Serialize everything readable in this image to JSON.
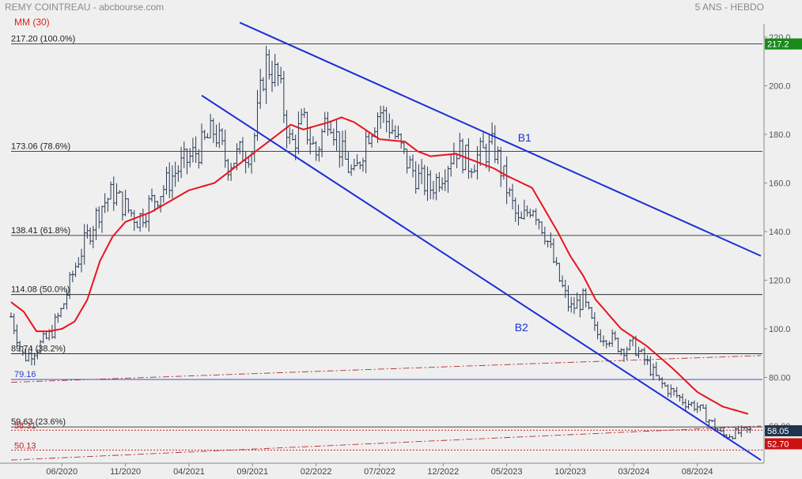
{
  "header": {
    "title": "REMY COINTREAU - abcbourse.com",
    "period": "5 ANS - HEBDO",
    "ma_label": "MM (30)"
  },
  "colors": {
    "background": "#efefef",
    "bars": "#2a3a55",
    "ma": "#e8141e",
    "channel": "#1b2fd6",
    "last_price_bg": "#1f3550",
    "high_bg": "#1a8a1a",
    "low_bg": "#cc1111"
  },
  "chart_data": {
    "type": "ohlc",
    "x_ticks": [
      "06/2020",
      "11/2020",
      "04/2021",
      "09/2021",
      "02/2022",
      "07/2022",
      "12/2022",
      "05/2023",
      "10/2023",
      "03/2024",
      "08/2024"
    ],
    "y_ticks": [
      "220.0",
      "200.0",
      "180.0",
      "160.0",
      "140.0",
      "120.0",
      "100.0",
      "80.00",
      "60.00"
    ],
    "ylim": [
      46,
      225
    ],
    "x_range": [
      "2020-02",
      "2025-01"
    ],
    "close_anchors": [
      [
        "2020-02",
        105
      ],
      [
        "2020-03",
        88
      ],
      [
        "2020-04",
        92
      ],
      [
        "2020-05",
        97
      ],
      [
        "2020-06",
        108
      ],
      [
        "2020-07",
        125
      ],
      [
        "2020-08",
        138
      ],
      [
        "2020-09",
        150
      ],
      [
        "2020-10",
        156
      ],
      [
        "2020-11",
        150
      ],
      [
        "2020-12",
        145
      ],
      [
        "2021-01",
        152
      ],
      [
        "2021-02",
        158
      ],
      [
        "2021-03",
        165
      ],
      [
        "2021-04",
        170
      ],
      [
        "2021-05",
        175
      ],
      [
        "2021-06",
        182
      ],
      [
        "2021-07",
        168
      ],
      [
        "2021-08",
        172
      ],
      [
        "2021-09",
        174
      ],
      [
        "2021-10",
        210
      ],
      [
        "2021-11",
        203
      ],
      [
        "2021-12",
        175
      ],
      [
        "2022-01",
        185
      ],
      [
        "2022-02",
        172
      ],
      [
        "2022-03",
        190
      ],
      [
        "2022-04",
        172
      ],
      [
        "2022-05",
        162
      ],
      [
        "2022-06",
        180
      ],
      [
        "2022-07",
        190
      ],
      [
        "2022-08",
        182
      ],
      [
        "2022-09",
        170
      ],
      [
        "2022-10",
        162
      ],
      [
        "2022-11",
        158
      ],
      [
        "2022-12",
        165
      ],
      [
        "2023-01",
        175
      ],
      [
        "2023-02",
        168
      ],
      [
        "2023-03",
        172
      ],
      [
        "2023-04",
        175
      ],
      [
        "2023-05",
        158
      ],
      [
        "2023-06",
        142
      ],
      [
        "2023-07",
        152
      ],
      [
        "2023-08",
        140
      ],
      [
        "2023-09",
        122
      ],
      [
        "2023-10",
        108
      ],
      [
        "2023-11",
        112
      ],
      [
        "2023-12",
        98
      ],
      [
        "2024-01",
        97
      ],
      [
        "2024-02",
        92
      ],
      [
        "2024-03",
        93
      ],
      [
        "2024-04",
        86
      ],
      [
        "2024-05",
        78
      ],
      [
        "2024-06",
        74
      ],
      [
        "2024-07",
        70
      ],
      [
        "2024-08",
        68
      ],
      [
        "2024-09",
        62
      ],
      [
        "2024-10",
        56
      ],
      [
        "2024-11",
        57
      ],
      [
        "2024-12",
        58.05
      ]
    ],
    "moving_average": {
      "label": "MM (30)",
      "anchors": [
        [
          "2020-02",
          111
        ],
        [
          "2020-03",
          107
        ],
        [
          "2020-04",
          99
        ],
        [
          "2020-05",
          99
        ],
        [
          "2020-06",
          100
        ],
        [
          "2020-07",
          103
        ],
        [
          "2020-08",
          112
        ],
        [
          "2020-09",
          128
        ],
        [
          "2020-10",
          138
        ],
        [
          "2020-11",
          144
        ],
        [
          "2021-01",
          148
        ],
        [
          "2021-04",
          157
        ],
        [
          "2021-06",
          160
        ],
        [
          "2021-08",
          168
        ],
        [
          "2021-10",
          176
        ],
        [
          "2021-12",
          184
        ],
        [
          "2022-01",
          182
        ],
        [
          "2022-03",
          185
        ],
        [
          "2022-04",
          187
        ],
        [
          "2022-05",
          185
        ],
        [
          "2022-07",
          178
        ],
        [
          "2022-09",
          177
        ],
        [
          "2022-10",
          173
        ],
        [
          "2022-11",
          171
        ],
        [
          "2023-01",
          172
        ],
        [
          "2023-02",
          170
        ],
        [
          "2023-04",
          166
        ],
        [
          "2023-05",
          163
        ],
        [
          "2023-07",
          158
        ],
        [
          "2023-09",
          140
        ],
        [
          "2023-10",
          130
        ],
        [
          "2023-11",
          122
        ],
        [
          "2023-12",
          112
        ],
        [
          "2024-02",
          100
        ],
        [
          "2024-04",
          93
        ],
        [
          "2024-06",
          84
        ],
        [
          "2024-08",
          74
        ],
        [
          "2024-10",
          68
        ],
        [
          "2024-12",
          65
        ]
      ]
    },
    "fibonacci": [
      {
        "price": 217.2,
        "label": "217.20",
        "pct": "(100.0%)"
      },
      {
        "price": 173.06,
        "label": "173.06",
        "pct": "(78.6%)"
      },
      {
        "price": 138.41,
        "label": "138.41",
        "pct": "(61.8%)"
      },
      {
        "price": 114.08,
        "label": "114.08",
        "pct": "(50.0%)"
      },
      {
        "price": 89.74,
        "label": "89.74",
        "pct": "(38.2%)"
      },
      {
        "price": 59.63,
        "label": "59.63",
        "pct": "(23.6%)"
      }
    ],
    "support_79": {
      "price": 79.16,
      "label": "79.16"
    },
    "dotted_levels": [
      {
        "price": 58.31,
        "label": "58.31"
      },
      {
        "price": 50.13,
        "label": "50.13"
      }
    ],
    "channel_labels": [
      "B1",
      "B2"
    ],
    "channels": [
      {
        "name": "B1",
        "from": [
          "2021-08",
          226
        ],
        "to": [
          "2025-01",
          130
        ]
      },
      {
        "name": "B2",
        "from": [
          "2021-05",
          196
        ],
        "to": [
          "2025-01",
          46
        ]
      }
    ],
    "dashdot_lines": [
      {
        "from": [
          "2020-02",
          78
        ],
        "to": [
          "2025-01",
          89
        ]
      },
      {
        "from": [
          "2020-02",
          46
        ],
        "to": [
          "2025-01",
          60
        ]
      }
    ],
    "price_badges": {
      "high": "217.2",
      "last": "58.05",
      "low": "52.70"
    },
    "badge_prices": {
      "high": 217.2,
      "last": 58.05,
      "low": 52.7
    }
  }
}
